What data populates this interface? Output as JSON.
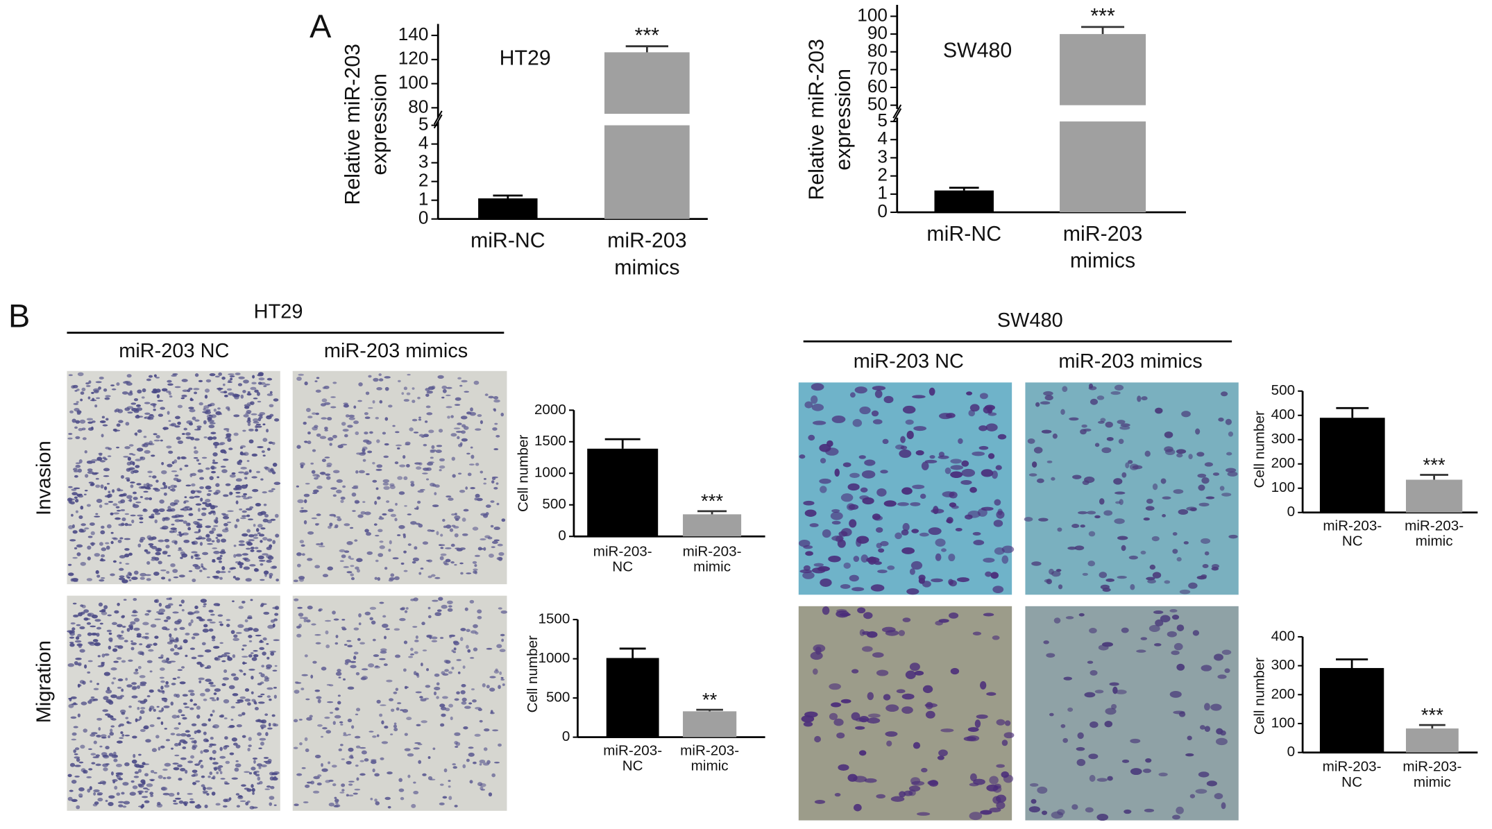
{
  "figure": {
    "panel_a_label": "A",
    "panel_b_label": "B",
    "groups": [
      {
        "name": "HT29",
        "columns": [
          "miR-203 NC",
          "miR-203 mimics"
        ]
      },
      {
        "name": "SW480",
        "columns": [
          "miR-203 NC",
          "miR-203 mimics"
        ]
      }
    ],
    "rows": [
      "Invasion",
      "Migration"
    ]
  },
  "chart_data": [
    {
      "type": "bar",
      "title": "HT29",
      "ylabel": [
        "Relative miR-203",
        "expression"
      ],
      "categories": [
        [
          "miR-NC"
        ],
        [
          "miR-203",
          "mimics"
        ]
      ],
      "values": [
        1.1,
        126
      ],
      "errors": [
        0.15,
        5
      ],
      "colors": [
        "#000000",
        "#a0a0a0"
      ],
      "ylim": [
        0,
        140
      ],
      "ybreak": [
        5,
        75
      ],
      "yticks": [
        0,
        1,
        2,
        3,
        4,
        5,
        80,
        100,
        120,
        140
      ],
      "annotation": "***"
    },
    {
      "type": "bar",
      "title": "SW480",
      "ylabel": [
        "Relative miR-203",
        "expression"
      ],
      "categories": [
        [
          "miR-NC"
        ],
        [
          "miR-203",
          "mimics"
        ]
      ],
      "values": [
        1.2,
        90
      ],
      "errors": [
        0.15,
        4
      ],
      "colors": [
        "#000000",
        "#a0a0a0"
      ],
      "ylim": [
        0,
        100
      ],
      "ybreak": [
        5,
        50
      ],
      "yticks": [
        0,
        1,
        2,
        3,
        4,
        5,
        50,
        60,
        70,
        80,
        90,
        100
      ],
      "annotation": "***"
    },
    {
      "type": "bar",
      "ylabel": [
        "Cell number"
      ],
      "categories": [
        [
          "miR-203-",
          "NC"
        ],
        [
          "miR-203-",
          "mimic"
        ]
      ],
      "values": [
        1390,
        350
      ],
      "errors": [
        150,
        50
      ],
      "colors": [
        "#000000",
        "#a0a0a0"
      ],
      "ylim": [
        0,
        2000
      ],
      "yticks": [
        0,
        500,
        1000,
        1500,
        2000
      ],
      "annotation": "***"
    },
    {
      "type": "bar",
      "ylabel": [
        "Cell number"
      ],
      "categories": [
        [
          "miR-203-",
          "NC"
        ],
        [
          "miR-203-",
          "mimic"
        ]
      ],
      "values": [
        1010,
        330
      ],
      "errors": [
        120,
        20
      ],
      "colors": [
        "#000000",
        "#a0a0a0"
      ],
      "ylim": [
        0,
        1500
      ],
      "yticks": [
        0,
        500,
        1000,
        1500
      ],
      "annotation": "**"
    },
    {
      "type": "bar",
      "ylabel": [
        "Cell number"
      ],
      "categories": [
        [
          "miR-203-",
          "NC"
        ],
        [
          "miR-203-",
          "mimic"
        ]
      ],
      "values": [
        390,
        135
      ],
      "errors": [
        40,
        20
      ],
      "colors": [
        "#000000",
        "#a0a0a0"
      ],
      "ylim": [
        0,
        500
      ],
      "yticks": [
        0,
        100,
        200,
        300,
        400,
        500
      ],
      "annotation": "***"
    },
    {
      "type": "bar",
      "ylabel": [
        "Cell number"
      ],
      "categories": [
        [
          "miR-203-",
          "NC"
        ],
        [
          "miR-203-",
          "mimic"
        ]
      ],
      "values": [
        292,
        83
      ],
      "errors": [
        30,
        12
      ],
      "colors": [
        "#000000",
        "#a0a0a0"
      ],
      "ylim": [
        0,
        400
      ],
      "yticks": [
        0,
        100,
        200,
        300,
        400
      ],
      "annotation": "***"
    }
  ]
}
